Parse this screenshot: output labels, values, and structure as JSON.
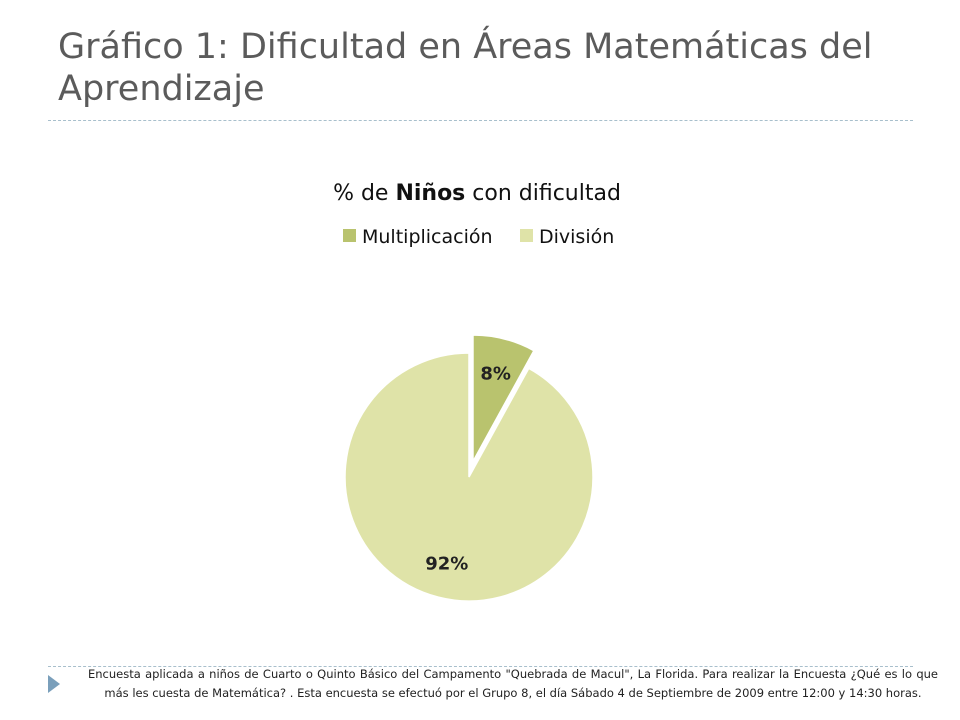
{
  "title": "Gráfico 1: Dificultad en Áreas Matemáticas del Aprendizaje",
  "chart_data": {
    "type": "pie",
    "title_parts": [
      "% de ",
      "Niños",
      " con dificultad"
    ],
    "series": [
      {
        "name": "Multiplicación",
        "value": 8,
        "label": "8%",
        "color": "#b9c36e",
        "exploded": true
      },
      {
        "name": "División",
        "value": 92,
        "label": "92%",
        "color": "#dfe3a8",
        "exploded": false
      }
    ],
    "legend_position": "top"
  },
  "footnote": "Encuesta aplicada a niños de Cuarto o Quinto Básico del Campamento \"Quebrada de Macul\", La Florida. Para realizar la Encuesta ¿Qué es lo que más les cuesta de Matemática? . Esta encuesta se efectuó por el Grupo 8, el día Sábado 4 de Septiembre de 2009 entre 12:00 y 14:30 horas."
}
